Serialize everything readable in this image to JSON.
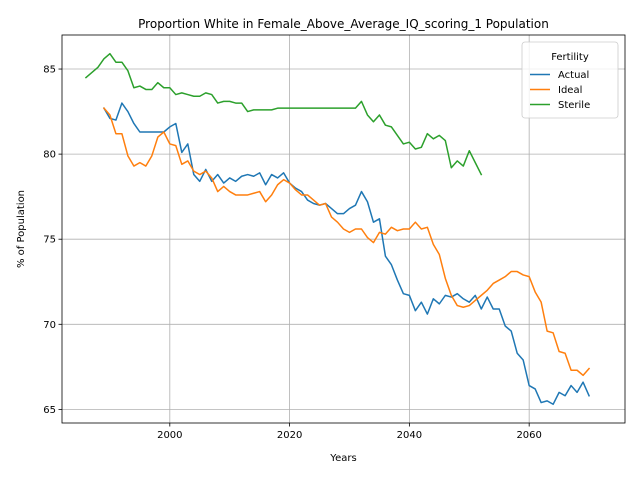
{
  "chart_data": {
    "type": "line",
    "title": "Proportion White in Female_Above_Average_IQ_scoring_1 Population",
    "xlabel": "Years",
    "ylabel": "% of Population",
    "xlim": [
      1982,
      2076
    ],
    "ylim": [
      64.2,
      87.0
    ],
    "xticks": [
      2000,
      2020,
      2040,
      2060
    ],
    "yticks": [
      65,
      70,
      75,
      80,
      85
    ],
    "grid": true,
    "legend": {
      "title": "Fertility",
      "position": "top-right"
    },
    "series": [
      {
        "name": "Actual",
        "color": "#1f77b4",
        "x": [
          1989,
          1990,
          1991,
          1992,
          1993,
          1994,
          1995,
          1996,
          1997,
          1998,
          1999,
          2000,
          2001,
          2002,
          2003,
          2004,
          2005,
          2006,
          2007,
          2008,
          2009,
          2010,
          2011,
          2012,
          2013,
          2014,
          2015,
          2016,
          2017,
          2018,
          2019,
          2020,
          2021,
          2022,
          2023,
          2024,
          2025,
          2026,
          2027,
          2028,
          2029,
          2030,
          2031,
          2032,
          2033,
          2034,
          2035,
          2036,
          2037,
          2038,
          2039,
          2040,
          2041,
          2042,
          2043,
          2044,
          2045,
          2046,
          2047,
          2048,
          2049,
          2050,
          2051,
          2052,
          2053,
          2054,
          2055,
          2056,
          2057,
          2058,
          2059,
          2060,
          2061,
          2062,
          2063,
          2064,
          2065,
          2066,
          2067,
          2068,
          2069,
          2070
        ],
        "values": [
          82.7,
          82.1,
          82.0,
          83.0,
          82.5,
          81.8,
          81.3,
          81.3,
          81.3,
          81.3,
          81.3,
          81.6,
          81.8,
          80.1,
          80.6,
          78.8,
          78.4,
          79.1,
          78.4,
          78.8,
          78.3,
          78.6,
          78.4,
          78.7,
          78.8,
          78.7,
          78.9,
          78.2,
          78.8,
          78.6,
          78.9,
          78.3,
          78.0,
          77.8,
          77.3,
          77.1,
          77.0,
          77.1,
          76.8,
          76.5,
          76.5,
          76.8,
          77.0,
          77.8,
          77.2,
          76.0,
          76.2,
          74.0,
          73.5,
          72.6,
          71.8,
          71.7,
          70.8,
          71.3,
          70.6,
          71.5,
          71.2,
          71.7,
          71.6,
          71.8,
          71.5,
          71.3,
          71.7,
          70.9,
          71.6,
          70.9,
          70.9,
          69.9,
          69.6,
          68.3,
          67.9,
          66.4,
          66.2,
          65.4,
          65.5,
          65.3,
          66.0,
          65.8,
          66.4,
          66.0,
          66.6,
          65.8
        ]
      },
      {
        "name": "Ideal",
        "color": "#ff7f0e",
        "x": [
          1989,
          1990,
          1991,
          1992,
          1993,
          1994,
          1995,
          1996,
          1997,
          1998,
          1999,
          2000,
          2001,
          2002,
          2003,
          2004,
          2005,
          2006,
          2007,
          2008,
          2009,
          2010,
          2011,
          2012,
          2013,
          2014,
          2015,
          2016,
          2017,
          2018,
          2019,
          2020,
          2021,
          2022,
          2023,
          2024,
          2025,
          2026,
          2027,
          2028,
          2029,
          2030,
          2031,
          2032,
          2033,
          2034,
          2035,
          2036,
          2037,
          2038,
          2039,
          2040,
          2041,
          2042,
          2043,
          2044,
          2045,
          2046,
          2047,
          2048,
          2049,
          2050,
          2051,
          2052,
          2053,
          2054,
          2055,
          2056,
          2057,
          2058,
          2059,
          2060,
          2061,
          2062,
          2063,
          2064,
          2065,
          2066,
          2067,
          2068,
          2069,
          2070
        ],
        "values": [
          82.7,
          82.3,
          81.2,
          81.2,
          79.9,
          79.3,
          79.5,
          79.3,
          79.9,
          81.0,
          81.3,
          80.6,
          80.5,
          79.4,
          79.6,
          79.0,
          78.8,
          79.0,
          78.6,
          77.8,
          78.1,
          77.8,
          77.6,
          77.6,
          77.6,
          77.7,
          77.8,
          77.2,
          77.6,
          78.2,
          78.5,
          78.3,
          77.9,
          77.6,
          77.6,
          77.3,
          77.0,
          77.1,
          76.3,
          76.0,
          75.6,
          75.4,
          75.6,
          75.6,
          75.1,
          74.8,
          75.4,
          75.3,
          75.7,
          75.5,
          75.6,
          75.6,
          76.0,
          75.6,
          75.7,
          74.7,
          74.1,
          72.7,
          71.7,
          71.1,
          71.0,
          71.1,
          71.4,
          71.7,
          72.0,
          72.4,
          72.6,
          72.8,
          73.1,
          73.1,
          72.9,
          72.8,
          71.9,
          71.3,
          69.6,
          69.5,
          68.4,
          68.3,
          67.3,
          67.3,
          67.0,
          67.4
        ]
      },
      {
        "name": "Sterile",
        "color": "#2ca02c",
        "x": [
          1986,
          1987,
          1988,
          1989,
          1990,
          1991,
          1992,
          1993,
          1994,
          1995,
          1996,
          1997,
          1998,
          1999,
          2000,
          2001,
          2002,
          2003,
          2004,
          2005,
          2006,
          2007,
          2008,
          2009,
          2010,
          2011,
          2012,
          2013,
          2014,
          2015,
          2016,
          2017,
          2018,
          2019,
          2020,
          2021,
          2022,
          2023,
          2024,
          2025,
          2026,
          2027,
          2028,
          2029,
          2030,
          2031,
          2032,
          2033,
          2034,
          2035,
          2036,
          2037,
          2038,
          2039,
          2040,
          2041,
          2042,
          2043,
          2044,
          2045,
          2046,
          2047,
          2048,
          2049,
          2050,
          2051,
          2052
        ],
        "values": [
          84.5,
          84.8,
          85.1,
          85.6,
          85.9,
          85.4,
          85.4,
          84.9,
          83.9,
          84.0,
          83.8,
          83.8,
          84.2,
          83.9,
          83.9,
          83.5,
          83.6,
          83.5,
          83.4,
          83.4,
          83.6,
          83.5,
          83.0,
          83.1,
          83.1,
          83.0,
          83.0,
          82.5,
          82.6,
          82.6,
          82.6,
          82.6,
          82.7,
          82.7,
          82.7,
          82.7,
          82.7,
          82.7,
          82.7,
          82.7,
          82.7,
          82.7,
          82.7,
          82.7,
          82.7,
          82.7,
          83.1,
          82.3,
          81.9,
          82.3,
          81.7,
          81.6,
          81.1,
          80.6,
          80.7,
          80.3,
          80.4,
          81.2,
          80.9,
          81.1,
          80.8,
          79.2,
          79.6,
          79.3,
          80.2,
          79.5,
          78.8
        ]
      }
    ]
  }
}
